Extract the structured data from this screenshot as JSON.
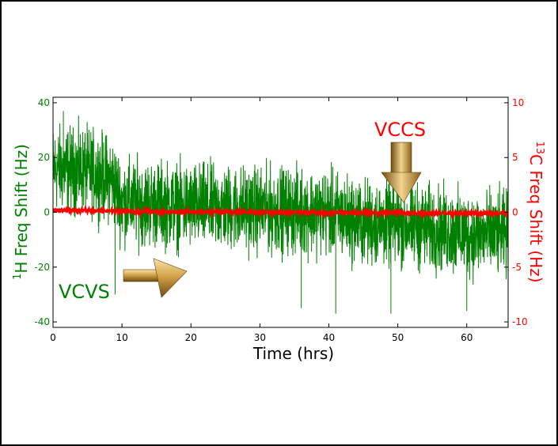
{
  "chart_data": {
    "type": "line",
    "xlabel": "Time (hrs)",
    "ylabel_left_sup": "1",
    "ylabel_left_main": "H Freq Shift (Hz)",
    "ylabel_right_sup": "13",
    "ylabel_right_main": "C Freq Shift (Hz)",
    "xlim": [
      0,
      66
    ],
    "ylim_left": [
      -42,
      42
    ],
    "ylim_right": [
      -10.5,
      10.5
    ],
    "x_ticks": [
      "0",
      "10",
      "20",
      "30",
      "40",
      "50",
      "60"
    ],
    "x_tick_values": [
      0,
      10,
      20,
      30,
      40,
      50,
      60
    ],
    "y_left_ticks": [
      "40",
      "20",
      "0",
      "-20",
      "-40"
    ],
    "y_left_tick_values": [
      40,
      20,
      0,
      -20,
      -40
    ],
    "y_right_ticks": [
      "10",
      "5",
      "0",
      "-5",
      "-10"
    ],
    "y_right_tick_values": [
      10,
      5,
      0,
      -5,
      -10
    ],
    "series": [
      {
        "axis": "left",
        "color": "#008000",
        "trend_x": [
          0,
          5,
          8.5,
          10,
          20,
          30,
          40,
          45,
          50,
          55,
          60,
          66
        ],
        "trend_y": [
          16,
          15,
          12,
          4,
          2,
          1,
          0,
          -4,
          -4,
          -6,
          -8,
          -8
        ],
        "noise_amplitude": 13,
        "spikes": [
          {
            "x": 9,
            "y": -30
          },
          {
            "x": 36,
            "y": -35
          },
          {
            "x": 41,
            "y": -37
          },
          {
            "x": 49,
            "y": -37
          },
          {
            "x": 60,
            "y": -36
          },
          {
            "x": 1.5,
            "y": 37
          }
        ]
      },
      {
        "axis": "right",
        "color": "#ff0000",
        "trend_x": [
          0,
          10,
          30,
          50,
          66
        ],
        "trend_y": [
          0.2,
          0.1,
          0.0,
          -0.05,
          -0.1
        ],
        "noise_amplitude": 0.15
      }
    ],
    "annotations": [
      {
        "text": "VCVS",
        "color": "#008000",
        "x": 14,
        "y": -28,
        "axis": "left"
      },
      {
        "text": "VCCS",
        "color": "#ff0000",
        "x": 50,
        "y": 7.5,
        "axis": "right"
      }
    ],
    "colors": {
      "left_axis": "#008000",
      "right_axis": "#ff0000",
      "arrow_gold": "#c9a04a"
    }
  }
}
